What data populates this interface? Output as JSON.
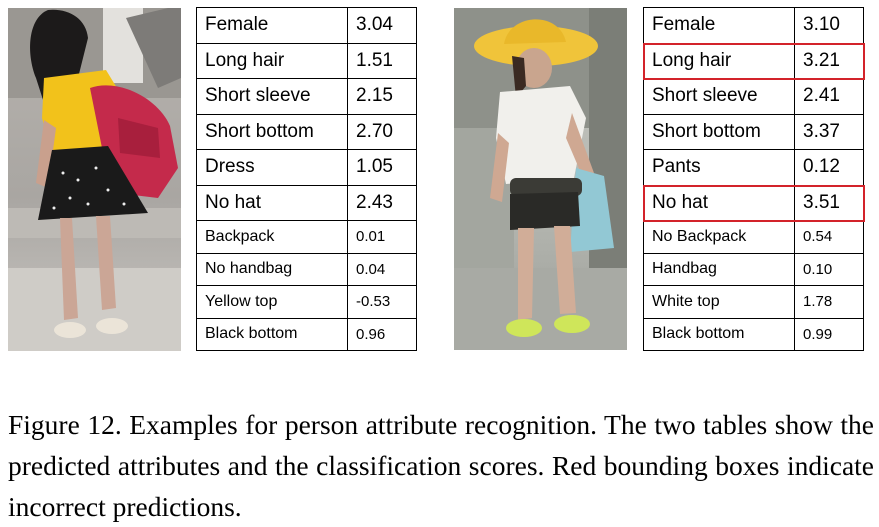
{
  "figure": {
    "left": {
      "rows": [
        {
          "label": "Female",
          "score": "3.04",
          "size": "big",
          "wrong": false
        },
        {
          "label": "Long hair",
          "score": "1.51",
          "size": "big",
          "wrong": false
        },
        {
          "label": "Short sleeve",
          "score": "2.15",
          "size": "big",
          "wrong": false
        },
        {
          "label": "Short bottom",
          "score": "2.70",
          "size": "big",
          "wrong": false
        },
        {
          "label": "Dress",
          "score": "1.05",
          "size": "big",
          "wrong": false
        },
        {
          "label": "No hat",
          "score": "2.43",
          "size": "big",
          "wrong": false
        },
        {
          "label": "Backpack",
          "score": "0.01",
          "size": "small",
          "wrong": false
        },
        {
          "label": "No handbag",
          "score": "0.04",
          "size": "small",
          "wrong": false
        },
        {
          "label": "Yellow top",
          "score": "-0.53",
          "size": "small",
          "wrong": false
        },
        {
          "label": "Black bottom",
          "score": "0.96",
          "size": "small",
          "wrong": false
        }
      ]
    },
    "right": {
      "rows": [
        {
          "label": "Female",
          "score": "3.10",
          "size": "big",
          "wrong": false
        },
        {
          "label": "Long hair",
          "score": "3.21",
          "size": "big",
          "wrong": true
        },
        {
          "label": "Short sleeve",
          "score": "2.41",
          "size": "big",
          "wrong": false
        },
        {
          "label": "Short bottom",
          "score": "3.37",
          "size": "big",
          "wrong": false
        },
        {
          "label": "Pants",
          "score": "0.12",
          "size": "big",
          "wrong": false
        },
        {
          "label": "No hat",
          "score": "3.51",
          "size": "big",
          "wrong": true
        },
        {
          "label": "No Backpack",
          "score": "0.54",
          "size": "small",
          "wrong": false
        },
        {
          "label": "Handbag",
          "score": "0.10",
          "size": "small",
          "wrong": false
        },
        {
          "label": "White top",
          "score": "1.78",
          "size": "small",
          "wrong": false
        },
        {
          "label": "Black bottom",
          "score": "0.99",
          "size": "small",
          "wrong": false
        }
      ]
    },
    "colors": {
      "wrong_box": "#d3232a",
      "left_top": "#f2c21b",
      "left_backpack": "#c42a4b",
      "right_hat": "#f0c43a"
    }
  },
  "caption": "Figure 12. Examples for person attribute recognition.  The two tables show the predicted attributes and the classification scores. Red bounding boxes indicate incorrect predictions."
}
